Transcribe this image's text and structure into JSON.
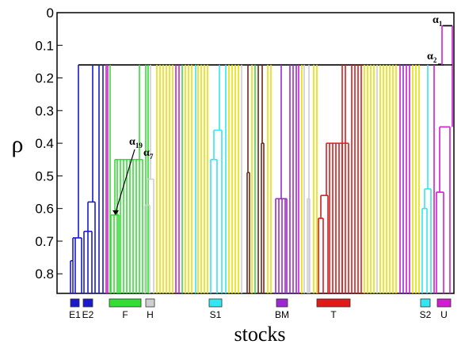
{
  "chart_data": {
    "type": "dendrogram",
    "xlabel": "stocks",
    "ylabel": "ρ",
    "ylim": [
      0,
      0.86
    ],
    "y_inverted": true,
    "yticks": [
      "0",
      "0.1",
      "0.2",
      "0.3",
      "0.4",
      "0.5",
      "0.6",
      "0.7",
      "0.8"
    ],
    "ytick_values": [
      0,
      0.1,
      0.2,
      0.3,
      0.4,
      0.5,
      0.6,
      0.7,
      0.8
    ],
    "root_level": 0.16,
    "top_level": 0.04,
    "groups": [
      {
        "label": "E1",
        "color": "#1a1acc"
      },
      {
        "label": "E2",
        "color": "#1a1acc"
      },
      {
        "label": "F",
        "color": "#33dd33"
      },
      {
        "label": "H",
        "color": "#cfcfcf"
      },
      {
        "label": "S1",
        "color": "#33e6f2"
      },
      {
        "label": "BM",
        "color": "#9a2ad0"
      },
      {
        "label": "T",
        "color": "#e01a1a"
      },
      {
        "label": "S2",
        "color": "#33e6f2"
      },
      {
        "label": "U",
        "color": "#d21cd2"
      }
    ],
    "annotations": [
      {
        "label": "α",
        "sub": "1",
        "level": 0.04
      },
      {
        "label": "α",
        "sub": "2",
        "level": 0.16
      },
      {
        "label": "α",
        "sub": "19",
        "level": 0.62
      },
      {
        "label": "α",
        "sub": "7",
        "level": 0.45
      }
    ],
    "cluster_levels": {
      "E1": [
        0.16,
        0.69,
        0.76
      ],
      "E2": [
        0.58,
        0.67
      ],
      "F": [
        0.45,
        0.62
      ],
      "H": [
        0.51,
        0.59
      ],
      "S1": [
        0.36,
        0.45
      ],
      "BM": [
        0.57
      ],
      "T": [
        0.4,
        0.56,
        0.63
      ],
      "S2": [
        0.54,
        0.6
      ],
      "U": [
        0.35,
        0.55
      ]
    },
    "grid": false
  }
}
